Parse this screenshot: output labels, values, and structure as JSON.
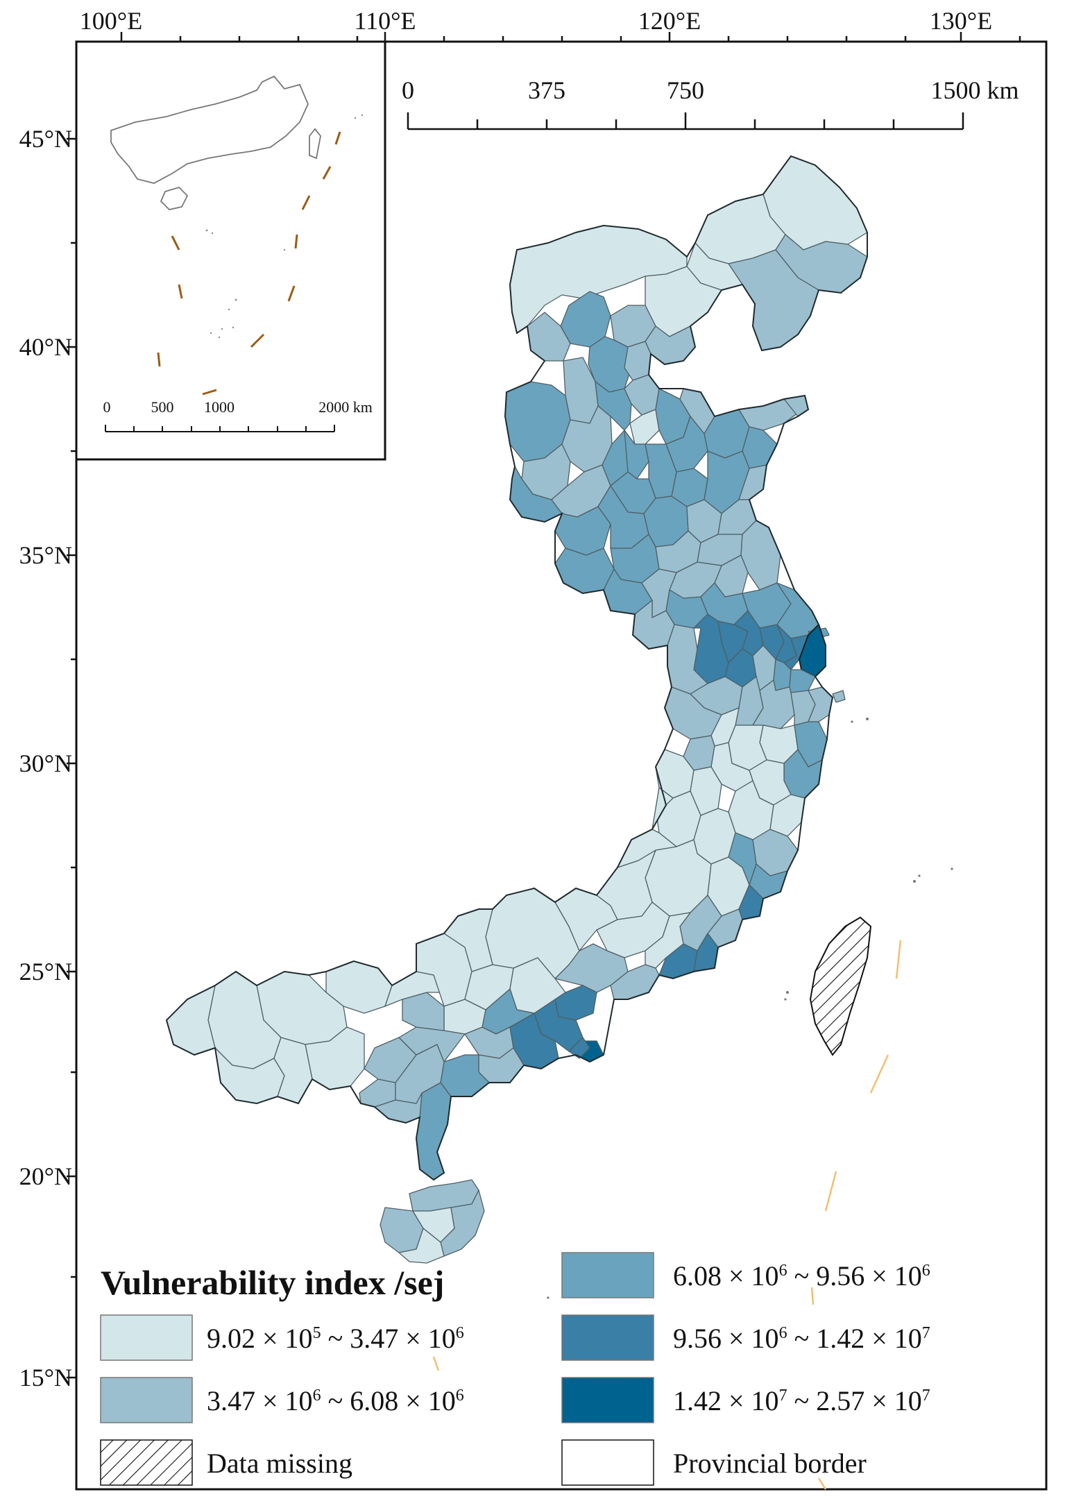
{
  "axes": {
    "lon_labels": [
      "100°E",
      "110°E",
      "120°E",
      "130°E"
    ],
    "lat_labels": [
      "45°N",
      "40°N",
      "35°N",
      "30°N",
      "25°N",
      "20°N",
      "15°N"
    ]
  },
  "scale_bar": {
    "labels": [
      "0",
      "375",
      "750",
      "1500 km"
    ]
  },
  "inset": {
    "scale_labels": [
      "0",
      "500",
      "1000",
      "2000 km"
    ]
  },
  "legend": {
    "title": "Vulnerability index /sej",
    "classes": [
      {
        "min_base": "9.02",
        "min_exp": "5",
        "max_base": "3.47",
        "max_exp": "6",
        "color": "#d3e7ea"
      },
      {
        "min_base": "3.47",
        "min_exp": "6",
        "max_base": "6.08",
        "max_exp": "6",
        "color": "#9bbfcf"
      },
      {
        "min_base": "6.08",
        "min_exp": "6",
        "max_base": "9.56",
        "max_exp": "6",
        "color": "#6aa3bd"
      },
      {
        "min_base": "9.56",
        "min_exp": "6",
        "max_base": "1.42",
        "max_exp": "7",
        "color": "#3a7fa5"
      },
      {
        "min_base": "1.42",
        "min_exp": "7",
        "max_base": "2.57",
        "max_exp": "7",
        "color": "#00628f"
      }
    ],
    "missing_label": "Data missing",
    "border_label": "Provincial border"
  }
}
